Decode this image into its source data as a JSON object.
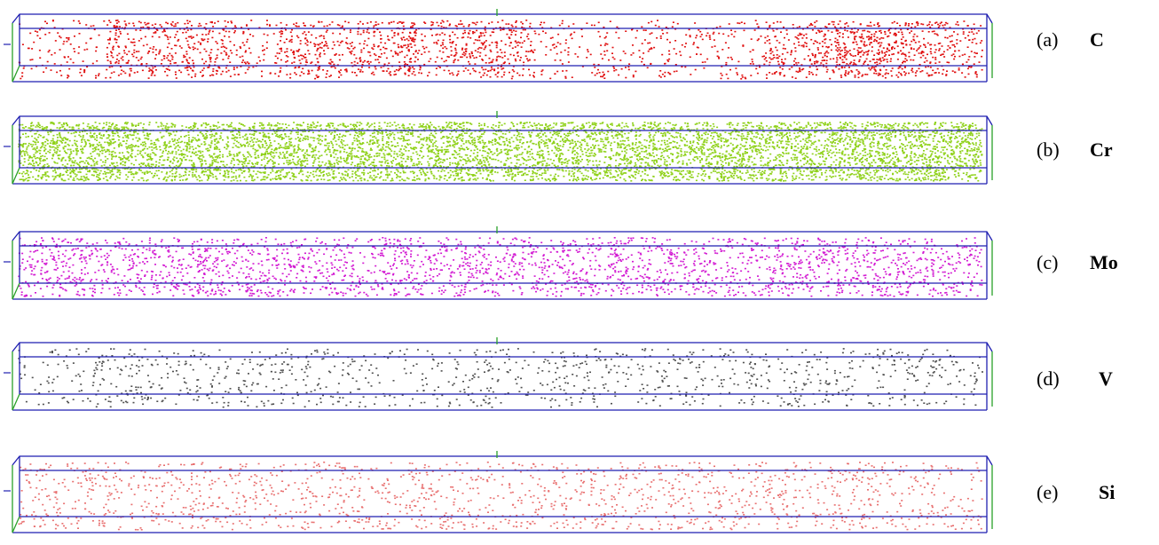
{
  "figure": {
    "panels": [
      {
        "tag": "(a)",
        "element": "C",
        "color": "#e01010",
        "density": "high, clustered"
      },
      {
        "tag": "(b)",
        "element": "Cr",
        "color": "#8fd11a",
        "density": "very high, uniform"
      },
      {
        "tag": "(c)",
        "element": "Mo",
        "color": "#d21ad2",
        "density": "medium, uniform"
      },
      {
        "tag": "(d)",
        "element": "V",
        "color": "#505050",
        "density": "low, uniform"
      },
      {
        "tag": "(e)",
        "element": "Si",
        "color": "#e87070",
        "density": "low, uniform"
      }
    ],
    "box_edge_color": "#1f1fb0",
    "axis_color": "#2aa02a"
  }
}
